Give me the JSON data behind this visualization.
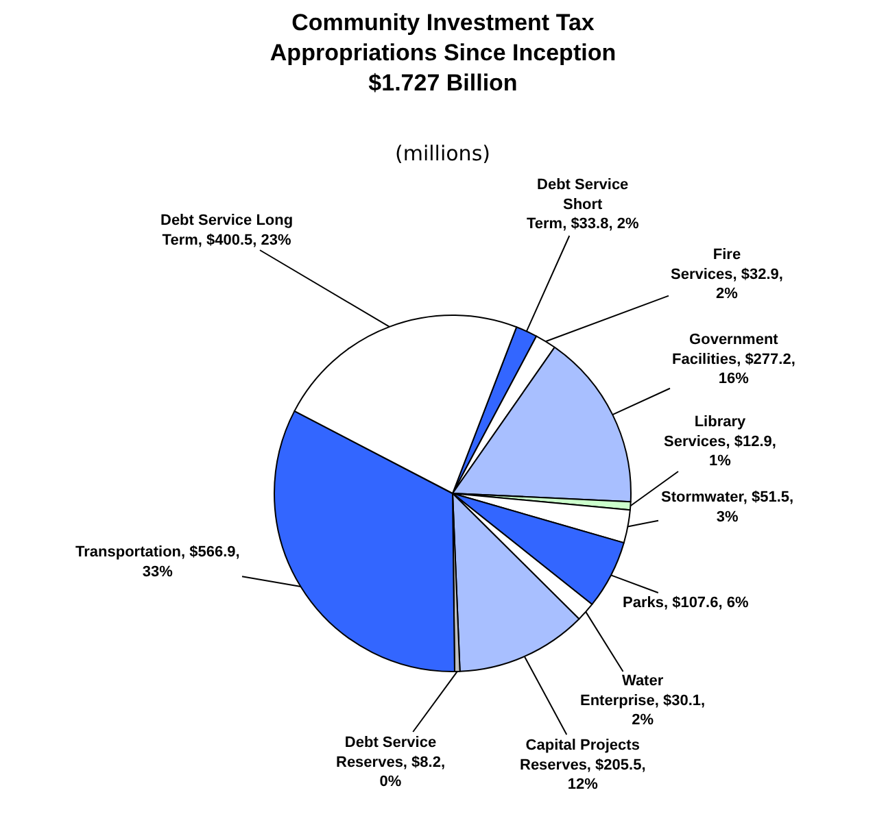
{
  "chart_data": {
    "type": "pie",
    "title": "Community Investment Tax\nAppropriations Since Inception\n$1.727 Billion",
    "subtitle": "(millions)",
    "categories": [
      "Debt Service Short Term",
      "Fire Services",
      "Government Facilities",
      "Library Services",
      "Stormwater",
      "Parks",
      "Water Enterprise",
      "Capital Projects Reserves",
      "Debt Service Reserves",
      "Transportation",
      "Debt Service Long Term"
    ],
    "values": [
      33.8,
      32.9,
      277.2,
      12.9,
      51.5,
      107.6,
      30.1,
      205.5,
      8.2,
      566.9,
      400.5
    ],
    "value_labels": [
      "$33.8, 2%",
      "$32.9, 2%",
      "$277.2, 16%",
      "$12.9, 1%",
      "$51.5, 3%",
      "$107.6, 6%",
      "$30.1, 2%",
      "$205.5, 12%",
      "$8.2, 0%",
      "$566.9, 33%",
      "$400.5, 23%"
    ],
    "colors": [
      "#3366ff",
      "#ffffff",
      "#a8bfff",
      "#ccffcc",
      "#ffffff",
      "#3366ff",
      "#ffffff",
      "#a8bfff",
      "#c0c0c0",
      "#3366ff",
      "#ffffff"
    ],
    "legend": false
  }
}
